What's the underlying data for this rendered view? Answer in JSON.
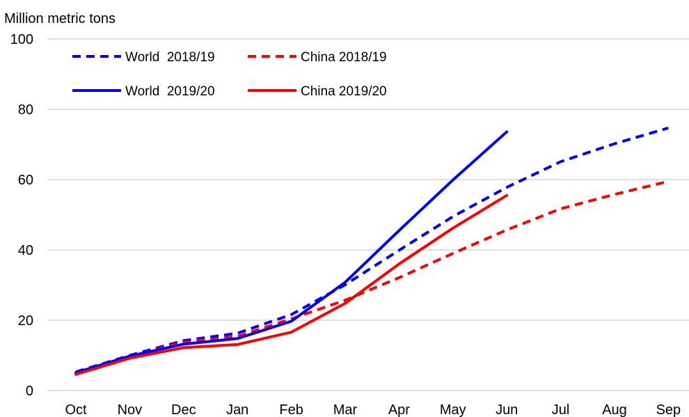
{
  "chart_data": {
    "type": "line",
    "ylabel": "Million metric tons",
    "ylim": [
      0,
      100
    ],
    "yticks": [
      0,
      20,
      40,
      60,
      80,
      100
    ],
    "categories": [
      "Oct",
      "Nov",
      "Dec",
      "Jan",
      "Feb",
      "Mar",
      "Apr",
      "May",
      "Jun",
      "Jul",
      "Aug",
      "Sep"
    ],
    "grid": true,
    "legend_position": "top-left",
    "series": [
      {
        "name": "World  2018/19",
        "color": "#0000ff",
        "dashed": true,
        "values": [
          5.3,
          10.0,
          14.2,
          16.3,
          21.6,
          30.1,
          39.9,
          49.5,
          57.8,
          65.1,
          70.2,
          74.7
        ]
      },
      {
        "name": "China 2018/19",
        "color": "#ff0000",
        "dashed": true,
        "values": [
          4.8,
          9.6,
          13.8,
          15.4,
          20.4,
          25.7,
          32.1,
          39.0,
          45.7,
          51.7,
          55.8,
          59.5
        ]
      },
      {
        "name": "World  2019/20",
        "color": "#0000ff",
        "dashed": false,
        "values": [
          5.1,
          9.8,
          13.2,
          14.8,
          19.7,
          30.8,
          45.5,
          59.9,
          73.6,
          null,
          null,
          null
        ]
      },
      {
        "name": "China 2019/20",
        "color": "#ff0000",
        "dashed": false,
        "values": [
          4.6,
          9.2,
          12.2,
          13.1,
          16.6,
          24.8,
          36.0,
          46.2,
          55.5,
          null,
          null,
          null
        ]
      }
    ]
  }
}
